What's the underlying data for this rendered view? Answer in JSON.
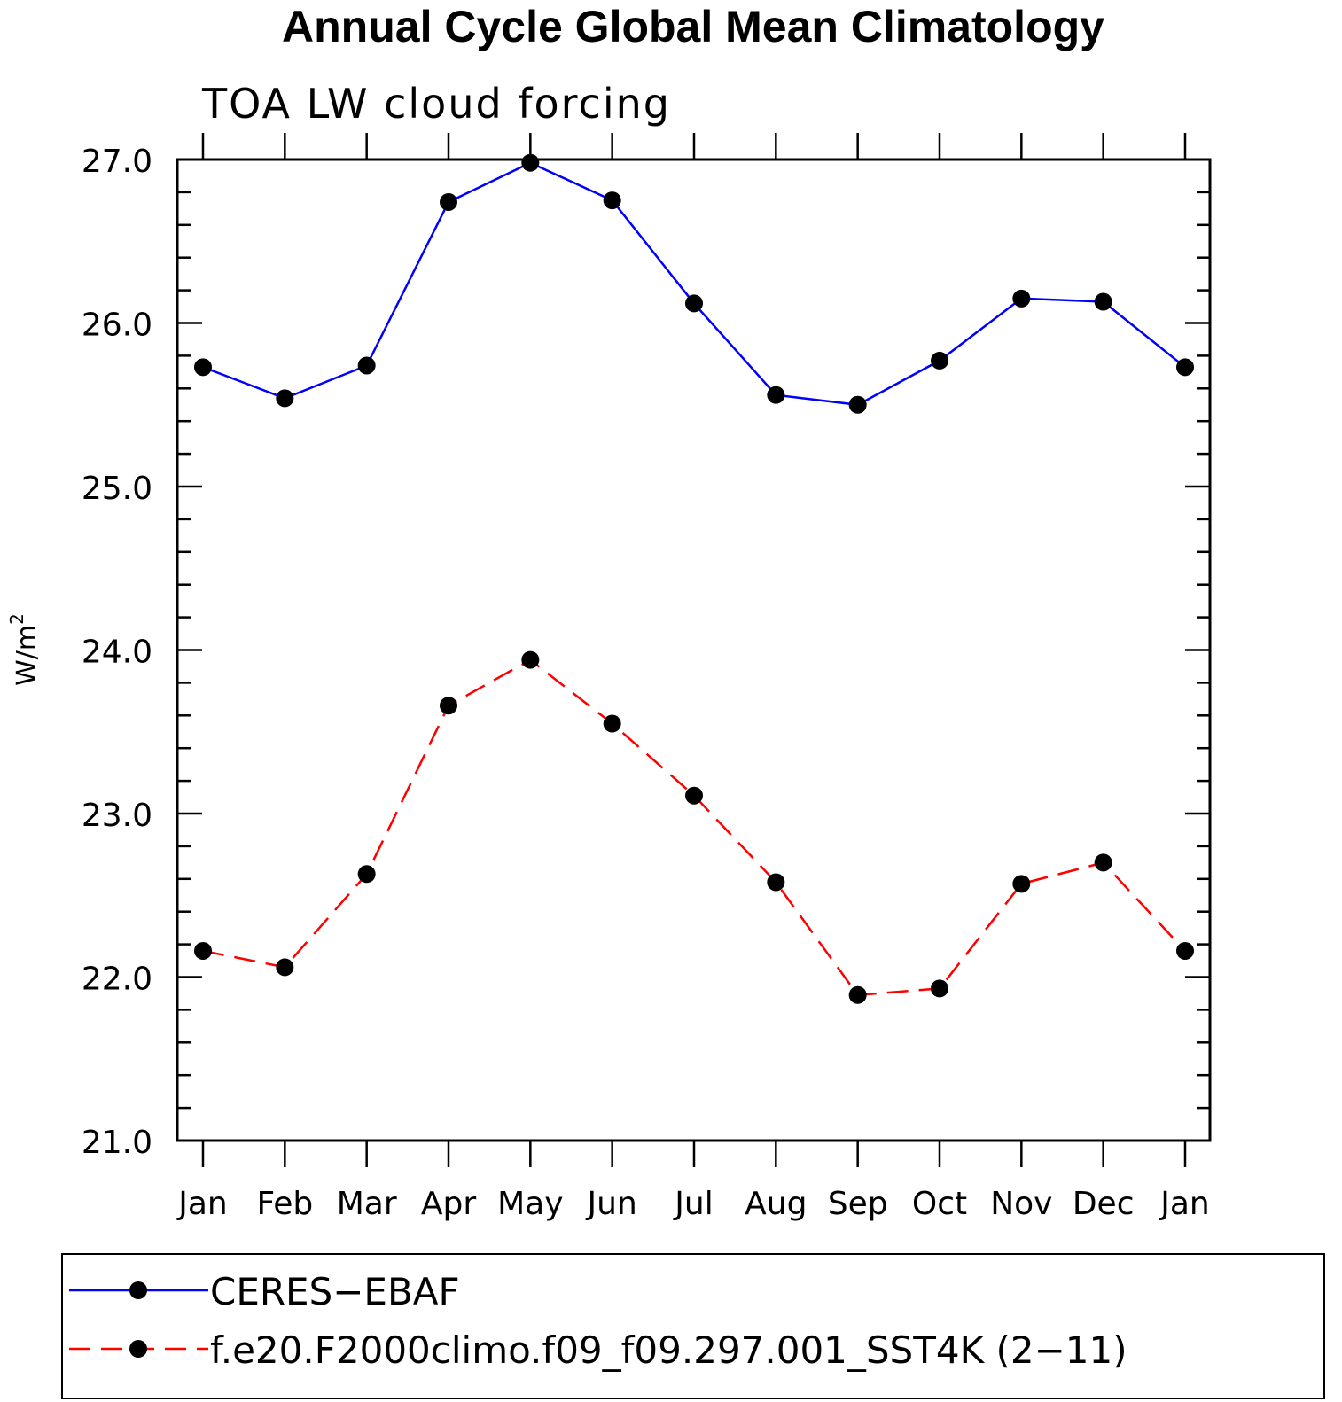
{
  "chart_data": {
    "type": "line",
    "title": "Annual Cycle Global Mean Climatology",
    "subtitle": "TOA LW cloud forcing",
    "ylabel": "W/m",
    "ylabel_sup": "2",
    "ylim": [
      21.0,
      27.0
    ],
    "yticks": [
      "21.0",
      "22.0",
      "23.0",
      "24.0",
      "25.0",
      "26.0",
      "27.0"
    ],
    "categories": [
      "Jan",
      "Feb",
      "Mar",
      "Apr",
      "May",
      "Jun",
      "Jul",
      "Aug",
      "Sep",
      "Oct",
      "Nov",
      "Dec",
      "Jan"
    ],
    "grid": false,
    "legend_position": "bottom",
    "series": [
      {
        "name": "CERES−EBAF",
        "color": "#0000ff",
        "dash": "solid",
        "values": [
          25.73,
          25.54,
          25.74,
          26.74,
          26.98,
          26.75,
          26.12,
          25.56,
          25.5,
          25.77,
          26.15,
          26.13,
          25.73
        ]
      },
      {
        "name": "f.e20.F2000climo.f09_f09.297.001_SST4K (2−11)",
        "color": "#ff0000",
        "dash": "dashed",
        "values": [
          22.16,
          22.06,
          22.63,
          23.66,
          23.94,
          23.55,
          23.11,
          22.58,
          21.89,
          21.93,
          22.57,
          22.7,
          22.16
        ]
      }
    ]
  }
}
